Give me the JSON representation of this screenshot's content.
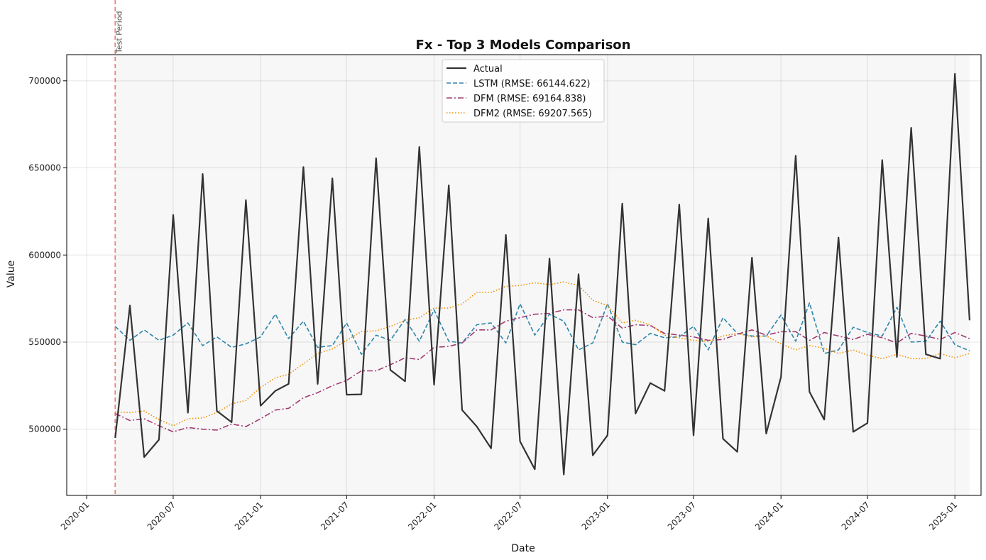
{
  "chart_data": {
    "type": "line",
    "title": "Fx - Top 3 Models Comparison",
    "xlabel": "Date",
    "ylabel": "Value",
    "ylim": [
      462000,
      715000
    ],
    "xlim": [
      "2019-11-20",
      "2025-02-25"
    ],
    "grid": true,
    "legend_position": "top-center",
    "x_ticks": [
      "2020-01",
      "2020-07",
      "2021-01",
      "2021-07",
      "2022-01",
      "2022-07",
      "2023-01",
      "2023-07",
      "2024-01",
      "2024-07",
      "2025-01"
    ],
    "y_ticks": [
      500000,
      550000,
      600000,
      650000,
      700000
    ],
    "test_period": {
      "start": "2020-03",
      "end": "2025-02",
      "label": "Test Period"
    },
    "x": [
      "2020-03",
      "2020-04",
      "2020-05",
      "2020-06",
      "2020-07",
      "2020-08",
      "2020-09",
      "2020-10",
      "2020-11",
      "2020-12",
      "2021-01",
      "2021-02",
      "2021-03",
      "2021-04",
      "2021-05",
      "2021-06",
      "2021-07",
      "2021-08",
      "2021-09",
      "2021-10",
      "2021-11",
      "2021-12",
      "2022-01",
      "2022-02",
      "2022-03",
      "2022-04",
      "2022-05",
      "2022-06",
      "2022-07",
      "2022-08",
      "2022-09",
      "2022-10",
      "2022-11",
      "2022-12",
      "2023-01",
      "2023-02",
      "2023-03",
      "2023-04",
      "2023-05",
      "2023-06",
      "2023-07",
      "2023-08",
      "2023-09",
      "2023-10",
      "2023-11",
      "2023-12",
      "2024-01",
      "2024-02",
      "2024-03",
      "2024-04",
      "2024-05",
      "2024-06",
      "2024-07",
      "2024-08",
      "2024-09",
      "2024-10",
      "2024-11",
      "2024-12",
      "2025-01",
      "2025-02"
    ],
    "series": [
      {
        "name": "Actual",
        "color": "#333333",
        "style": "solid",
        "values": [
          495000,
          571000,
          484000,
          494000,
          623000,
          509500,
          646500,
          510500,
          504000,
          631500,
          513500,
          522000,
          526000,
          650500,
          526000,
          644000,
          519800,
          520000,
          655500,
          534000,
          527500,
          662000,
          525500,
          640000,
          511000,
          501500,
          489000,
          611500,
          493000,
          477000,
          598000,
          474000,
          589000,
          485000,
          496500,
          629500,
          509000,
          526500,
          522000,
          629000,
          496500,
          621000,
          494500,
          487000,
          598500,
          497500,
          530000,
          657000,
          521500,
          505500,
          610000,
          498500,
          503500,
          654500,
          541500,
          673000,
          543000,
          540500,
          704000,
          562500
        ]
      },
      {
        "name": "LSTM (RMSE: 66144.622)",
        "color": "#2e86ab",
        "style": "dashed",
        "values": [
          559000,
          551000,
          557000,
          551000,
          554000,
          561000,
          548000,
          553000,
          547000,
          549000,
          553000,
          566000,
          552000,
          562000,
          547000,
          548000,
          561000,
          543000,
          554000,
          551000,
          563000,
          550500,
          568500,
          550500,
          549500,
          560000,
          561000,
          549500,
          572000,
          554000,
          566000,
          562000,
          545500,
          549500,
          572000,
          550000,
          548500,
          555000,
          552500,
          553000,
          559000,
          545500,
          564000,
          555000,
          553500,
          553500,
          565500,
          550500,
          572500,
          543500,
          545500,
          558500,
          555500,
          553500,
          570000,
          550000,
          550500,
          562000,
          548500,
          545000
        ]
      },
      {
        "name": "DFM (RMSE: 69164.838)",
        "color": "#a23b72",
        "style": "dashdot",
        "values": [
          509000,
          505000,
          506000,
          502000,
          498500,
          501000,
          500000,
          499500,
          503000,
          501500,
          506000,
          511000,
          512000,
          518000,
          521000,
          525000,
          528000,
          533500,
          533500,
          537000,
          541000,
          540000,
          547000,
          547500,
          549500,
          557000,
          557000,
          562000,
          564000,
          566000,
          566500,
          568500,
          568500,
          564000,
          565000,
          558000,
          560000,
          559500,
          555000,
          554000,
          553000,
          551000,
          551500,
          554500,
          557000,
          554000,
          556000,
          556000,
          551000,
          555500,
          553500,
          551500,
          554500,
          552500,
          549500,
          555000,
          553500,
          551500,
          555500,
          552000
        ]
      },
      {
        "name": "DFM2 (RMSE: 69207.565)",
        "color": "#f18f01",
        "style": "dotted",
        "values": [
          510000,
          509500,
          510500,
          505500,
          502000,
          506000,
          506500,
          509500,
          514500,
          516500,
          524000,
          529500,
          531500,
          537500,
          543500,
          546000,
          551000,
          556000,
          556500,
          559000,
          562500,
          564000,
          569500,
          569500,
          572000,
          578500,
          578500,
          582000,
          582500,
          584000,
          583000,
          584500,
          582500,
          574000,
          571000,
          561000,
          562500,
          560000,
          554000,
          552500,
          551000,
          550500,
          553500,
          555000,
          553000,
          553500,
          549000,
          545500,
          548000,
          546500,
          543500,
          545500,
          542500,
          540500,
          543000,
          540500,
          540500,
          543500,
          541000,
          543500
        ]
      }
    ]
  }
}
